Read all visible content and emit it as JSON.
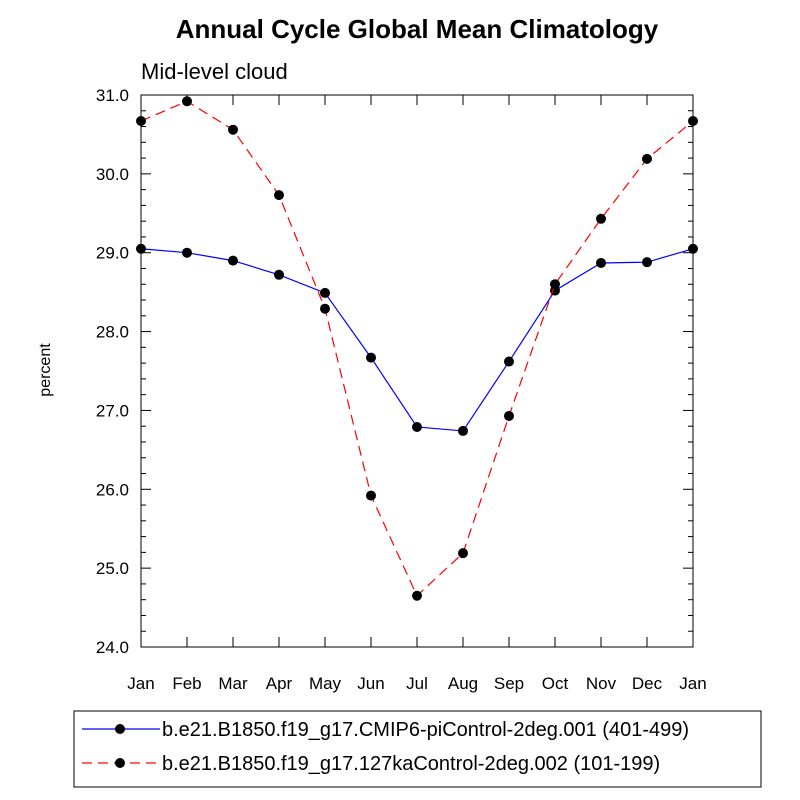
{
  "chart_data": {
    "type": "line",
    "title": "Annual Cycle Global Mean Climatology",
    "subtitle": "Mid-level cloud",
    "xlabel": "",
    "ylabel": "percent",
    "categories": [
      "Jan",
      "Feb",
      "Mar",
      "Apr",
      "May",
      "Jun",
      "Jul",
      "Aug",
      "Sep",
      "Oct",
      "Nov",
      "Dec",
      "Jan"
    ],
    "ylim": [
      24.0,
      31.0
    ],
    "yticks": [
      "24.0",
      "25.0",
      "26.0",
      "27.0",
      "28.0",
      "29.0",
      "30.0",
      "31.0"
    ],
    "legend_position": "bottom",
    "series": [
      {
        "name": "b.e21.B1850.f19_g17.CMIP6-piControl-2deg.001 (401-499)",
        "color": "#0000ff",
        "dash": "solid",
        "values": [
          29.05,
          29.0,
          28.9,
          28.72,
          28.49,
          27.67,
          26.79,
          26.74,
          27.62,
          28.52,
          28.87,
          28.88,
          29.05
        ]
      },
      {
        "name": "b.e21.B1850.f19_g17.127kaControl-2deg.002 (101-199)",
        "color": "#ff0000",
        "dash": "dashed",
        "values": [
          30.67,
          30.92,
          30.56,
          29.73,
          28.29,
          25.92,
          24.65,
          25.19,
          26.93,
          28.6,
          29.43,
          30.19,
          30.67
        ]
      }
    ]
  }
}
